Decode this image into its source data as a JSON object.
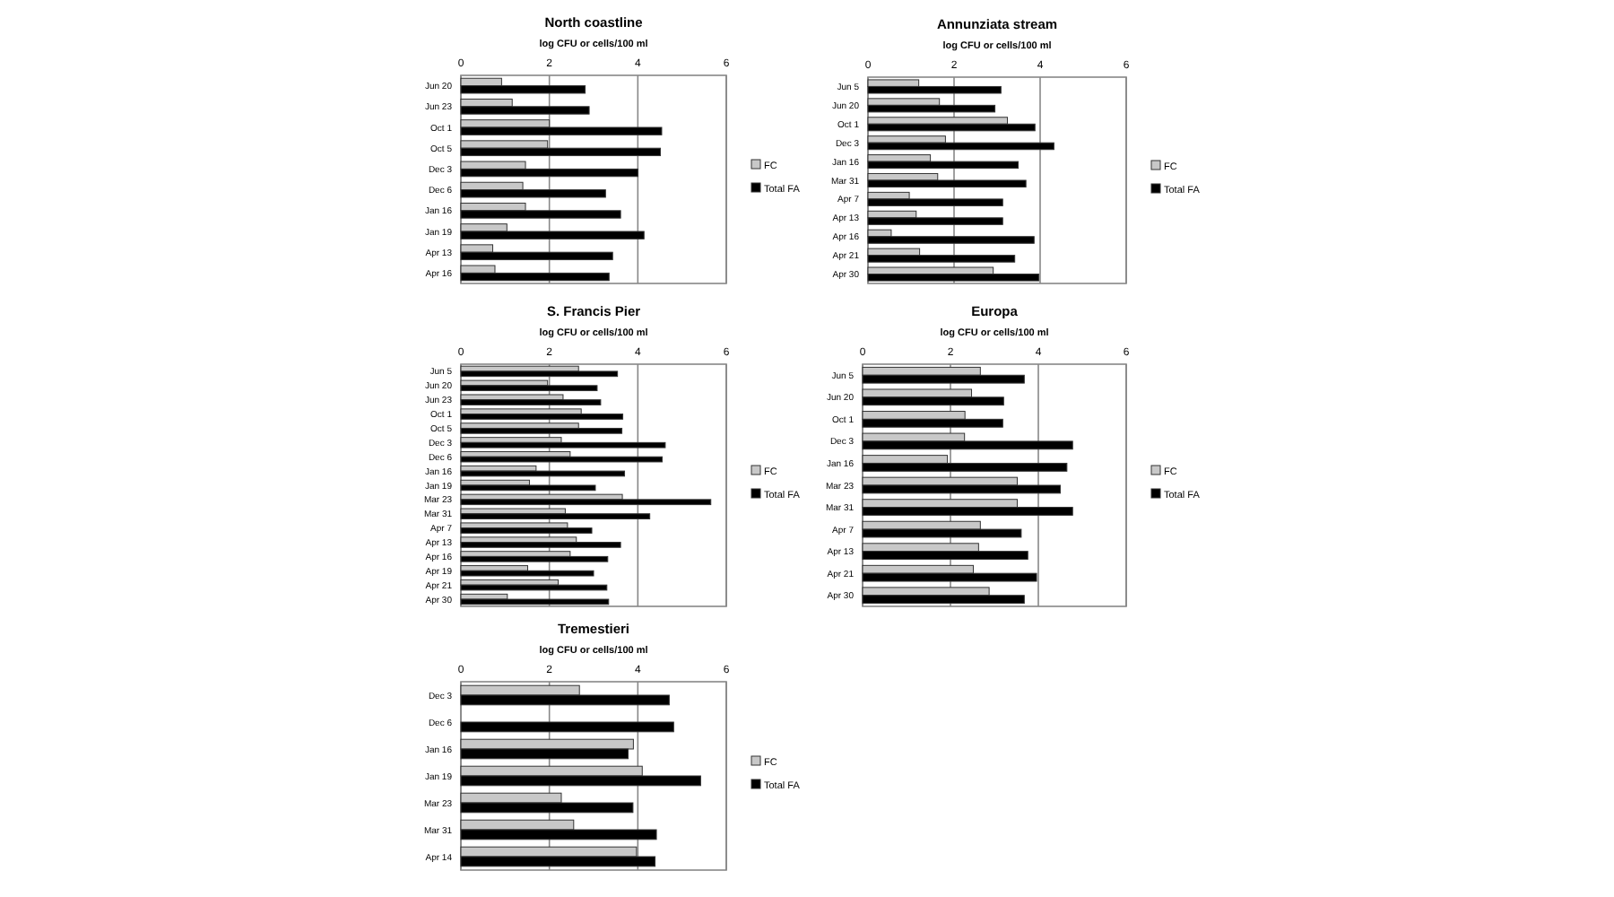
{
  "chart_data": [
    {
      "type": "bar",
      "orientation": "horizontal",
      "title": "North coastline",
      "xlabel": "log CFU or cells/100 ml",
      "categories": [
        "Jun 20",
        "Jun 23",
        "Oct 1",
        "Oct 5",
        "Dec 3",
        "Dec 6",
        "Jan 16",
        "Jan 19",
        "Apr 13",
        "Apr 16"
      ],
      "series": [
        {
          "name": "FC",
          "color": "#c8c8c8",
          "values": [
            0.92,
            1.16,
            2.0,
            1.96,
            1.46,
            1.4,
            1.46,
            1.04,
            0.72,
            0.77
          ]
        },
        {
          "name": "Total FA",
          "color": "#000000",
          "values": [
            2.81,
            2.9,
            4.54,
            4.51,
            4.0,
            3.27,
            3.61,
            4.14,
            3.43,
            3.35
          ]
        }
      ],
      "xlim": [
        0,
        6
      ],
      "xticks": [
        0,
        2,
        4,
        6
      ],
      "grid": "x",
      "legend": "right"
    },
    {
      "type": "bar",
      "orientation": "horizontal",
      "title": "Annunziata stream",
      "xlabel": "log CFU or cells/100 ml",
      "categories": [
        "Jun 5",
        "Jun 20",
        "Oct 1",
        "Dec 3",
        "Jan 16",
        "Mar 31",
        "Apr 7",
        "Apr 13",
        "Apr 16",
        "Apr 21",
        "Apr 30"
      ],
      "series": [
        {
          "name": "FC",
          "color": "#c8c8c8",
          "values": [
            1.18,
            1.66,
            3.24,
            1.8,
            1.45,
            1.62,
            0.96,
            1.12,
            0.54,
            1.2,
            2.91
          ]
        },
        {
          "name": "Total FA",
          "color": "#000000",
          "values": [
            3.09,
            2.95,
            3.88,
            4.32,
            3.49,
            3.67,
            3.13,
            3.13,
            3.86,
            3.41,
            3.97
          ]
        }
      ],
      "xlim": [
        0,
        6
      ],
      "xticks": [
        0,
        2,
        4,
        6
      ],
      "grid": "x",
      "legend": "right"
    },
    {
      "type": "bar",
      "orientation": "horizontal",
      "title": "S. Francis Pier",
      "xlabel": "log CFU or cells/100 ml",
      "categories": [
        "Jun 5",
        "Jun 20",
        "Jun 23",
        "Oct 1",
        "Oct 5",
        "Dec 3",
        "Dec 6",
        "Jan 16",
        "Jan 19",
        "Mar 23",
        "Mar 31",
        "Apr 7",
        "Apr 13",
        "Apr 16",
        "Apr 19",
        "Apr 21",
        "Apr 30"
      ],
      "series": [
        {
          "name": "FC",
          "color": "#c8c8c8",
          "values": [
            2.66,
            1.96,
            2.31,
            2.72,
            2.66,
            2.27,
            2.47,
            1.7,
            1.55,
            3.65,
            2.36,
            2.41,
            2.61,
            2.47,
            1.51,
            2.2,
            1.05
          ]
        },
        {
          "name": "Total FA",
          "color": "#000000",
          "values": [
            3.54,
            3.08,
            3.16,
            3.66,
            3.64,
            4.62,
            4.55,
            3.7,
            3.04,
            5.65,
            4.27,
            2.96,
            3.61,
            3.32,
            3.0,
            3.3,
            3.34
          ]
        }
      ],
      "xlim": [
        0,
        6
      ],
      "xticks": [
        0,
        2,
        4,
        6
      ],
      "grid": "x",
      "legend": "right"
    },
    {
      "type": "bar",
      "orientation": "horizontal",
      "title": "Europa",
      "xlabel": "log CFU or cells/100 ml",
      "categories": [
        "Jun 5",
        "Jun 20",
        "Oct 1",
        "Dec 3",
        "Jan 16",
        "Mar 23",
        "Mar 31",
        "Apr 7",
        "Apr 13",
        "Apr 21",
        "Apr 30"
      ],
      "series": [
        {
          "name": "FC",
          "color": "#c8c8c8",
          "values": [
            2.68,
            2.48,
            2.33,
            2.32,
            1.93,
            3.52,
            3.52,
            2.68,
            2.64,
            2.52,
            2.88
          ]
        },
        {
          "name": "Total FA",
          "color": "#000000",
          "values": [
            3.68,
            3.21,
            3.19,
            4.78,
            4.65,
            4.5,
            4.78,
            3.61,
            3.76,
            3.96,
            3.68
          ]
        }
      ],
      "xlim": [
        0,
        6
      ],
      "xticks": [
        0,
        2,
        4,
        6
      ],
      "grid": "x",
      "legend": "right"
    },
    {
      "type": "bar",
      "orientation": "horizontal",
      "title": "Tremestieri",
      "xlabel": "log CFU or cells/100 ml",
      "categories": [
        "Dec 3",
        "Dec 6",
        "Jan 16",
        "Jan 19",
        "Mar 23",
        "Mar 31",
        "Apr 14"
      ],
      "series": [
        {
          "name": "FC",
          "color": "#c8c8c8",
          "values": [
            2.68,
            null,
            3.9,
            4.1,
            2.27,
            2.55,
            3.97
          ]
        },
        {
          "name": "Total FA",
          "color": "#000000",
          "values": [
            4.71,
            4.81,
            3.78,
            5.42,
            3.89,
            4.42,
            4.39
          ]
        }
      ],
      "xlim": [
        0,
        6
      ],
      "xticks": [
        0,
        2,
        4,
        6
      ],
      "grid": "x",
      "legend": "right"
    }
  ]
}
